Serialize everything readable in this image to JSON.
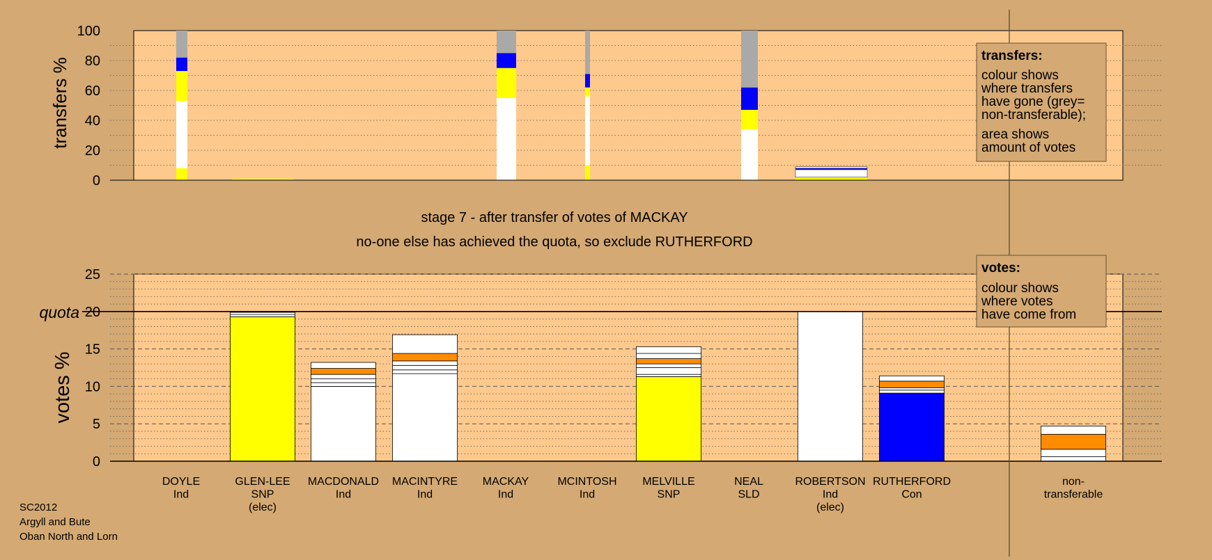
{
  "colors": {
    "background": "#d4a973",
    "plot_bg": "#fdc98d",
    "white": "#ffffff",
    "yellow": "#ffff00",
    "blue": "#0000ff",
    "orange": "#ff8c00",
    "grey": "#a9a9a9",
    "axis": "#000000"
  },
  "stage_title": "stage 7 - after transfer of votes of MACKAY",
  "stage_subtitle": "no-one else has achieved the quota, so exclude RUTHERFORD",
  "footer": [
    "SC2012",
    "Argyll and Bute",
    "Oban North and Lorn"
  ],
  "transfers_legend": {
    "heading": "transfers:",
    "lines_a": [
      "colour shows",
      "where transfers",
      "have gone (grey=",
      "non-transferable);"
    ],
    "lines_b": [
      "area shows",
      "amount of votes"
    ]
  },
  "votes_legend": {
    "heading": "votes:",
    "lines": [
      "colour shows",
      "where votes",
      "have come from"
    ]
  },
  "chart_data": [
    {
      "type": "bar",
      "title": "",
      "ylabel": "transfers %",
      "ylim": [
        0,
        100
      ],
      "yticks": [
        0,
        20,
        40,
        60,
        80,
        100
      ],
      "grid": "dotted every 10",
      "legend": "top-right",
      "note": "bar width proportional to amount of votes transferred",
      "bars": [
        {
          "category": "DOYLE",
          "segments": [
            {
              "color": "yellow",
              "from": 0,
              "to": 8
            },
            {
              "color": "white",
              "from": 8,
              "to": 53
            },
            {
              "color": "yellow",
              "from": 53,
              "to": 73
            },
            {
              "color": "blue",
              "from": 73,
              "to": 82
            },
            {
              "color": "grey",
              "from": 82,
              "to": 100
            }
          ]
        },
        {
          "category": "GLEN-LEE",
          "segments": [
            {
              "color": "yellow",
              "from": 0,
              "to": 1
            }
          ]
        },
        {
          "category": "MACKAY",
          "segments": [
            {
              "color": "white",
              "from": 0,
              "to": 55
            },
            {
              "color": "yellow",
              "from": 55,
              "to": 75
            },
            {
              "color": "blue",
              "from": 75,
              "to": 85
            },
            {
              "color": "grey",
              "from": 85,
              "to": 100
            }
          ]
        },
        {
          "category": "MCINTOSH",
          "segments": [
            {
              "color": "yellow",
              "from": 0,
              "to": 10
            },
            {
              "color": "white",
              "from": 10,
              "to": 56
            },
            {
              "color": "yellow",
              "from": 56,
              "to": 62
            },
            {
              "color": "blue",
              "from": 62,
              "to": 71
            },
            {
              "color": "grey",
              "from": 71,
              "to": 100
            }
          ]
        },
        {
          "category": "NEAL",
          "segments": [
            {
              "color": "white",
              "from": 0,
              "to": 34
            },
            {
              "color": "yellow",
              "from": 34,
              "to": 47
            },
            {
              "color": "blue",
              "from": 47,
              "to": 62
            },
            {
              "color": "grey",
              "from": 62,
              "to": 100
            }
          ]
        },
        {
          "category": "ROBERTSON",
          "segments": [
            {
              "color": "yellow",
              "from": 0,
              "to": 2
            },
            {
              "color": "white",
              "from": 2,
              "to": 7
            },
            {
              "color": "blue",
              "from": 7,
              "to": 8
            },
            {
              "color": "white",
              "from": 8,
              "to": 9
            }
          ]
        }
      ]
    },
    {
      "type": "bar",
      "title": "",
      "ylabel": "votes %",
      "ylim": [
        0,
        25
      ],
      "yticks": [
        0,
        5,
        10,
        15,
        20,
        25
      ],
      "quota": {
        "label": "quota",
        "value": 20
      },
      "grid": "dashed every 5, dotted every 1",
      "legend": "top-right",
      "categories": [
        {
          "name": "DOYLE",
          "party": "Ind",
          "status": ""
        },
        {
          "name": "GLEN-LEE",
          "party": "SNP",
          "status": "(elec)"
        },
        {
          "name": "MACDONALD",
          "party": "Ind",
          "status": ""
        },
        {
          "name": "MACINTYRE",
          "party": "Ind",
          "status": ""
        },
        {
          "name": "MACKAY",
          "party": "Ind",
          "status": ""
        },
        {
          "name": "MCINTOSH",
          "party": "Ind",
          "status": ""
        },
        {
          "name": "MELVILLE",
          "party": "SNP",
          "status": ""
        },
        {
          "name": "NEAL",
          "party": "SLD",
          "status": ""
        },
        {
          "name": "ROBERTSON",
          "party": "Ind",
          "status": "(elec)"
        },
        {
          "name": "RUTHERFORD",
          "party": "Con",
          "status": ""
        },
        {
          "name": "non-transferable",
          "party": "",
          "status": ""
        }
      ],
      "stacks": [
        [],
        [
          {
            "color": "yellow",
            "value": 19.3
          },
          {
            "color": "white",
            "value": 0.3
          },
          {
            "color": "white",
            "value": 0.3
          },
          {
            "color": "white",
            "value": 0.1
          }
        ],
        [
          {
            "color": "white",
            "value": 10.0
          },
          {
            "color": "white",
            "value": 0.5
          },
          {
            "color": "white",
            "value": 0.5
          },
          {
            "color": "white",
            "value": 0.6
          },
          {
            "color": "orange",
            "value": 0.8
          },
          {
            "color": "white",
            "value": 0.8
          }
        ],
        [
          {
            "color": "white",
            "value": 11.7
          },
          {
            "color": "white",
            "value": 0.5
          },
          {
            "color": "white",
            "value": 0.6
          },
          {
            "color": "white",
            "value": 0.6
          },
          {
            "color": "orange",
            "value": 1.0
          },
          {
            "color": "white",
            "value": 2.5
          }
        ],
        [],
        [],
        [
          {
            "color": "yellow",
            "value": 11.3
          },
          {
            "color": "white",
            "value": 0.3
          },
          {
            "color": "white",
            "value": 0.9
          },
          {
            "color": "white",
            "value": 0.5
          },
          {
            "color": "orange",
            "value": 0.7
          },
          {
            "color": "white",
            "value": 0.7
          },
          {
            "color": "white",
            "value": 0.9
          }
        ],
        [],
        [
          {
            "color": "white",
            "value": 20.0
          }
        ],
        [
          {
            "color": "blue",
            "value": 9.1
          },
          {
            "color": "white",
            "value": 0.4
          },
          {
            "color": "white",
            "value": 0.3
          },
          {
            "color": "orange",
            "value": 0.9
          },
          {
            "color": "white",
            "value": 0.7
          }
        ],
        [
          {
            "color": "white",
            "value": 0.6
          },
          {
            "color": "white",
            "value": 1.0
          },
          {
            "color": "orange",
            "value": 2.0
          },
          {
            "color": "white",
            "value": 1.1
          }
        ]
      ]
    }
  ]
}
